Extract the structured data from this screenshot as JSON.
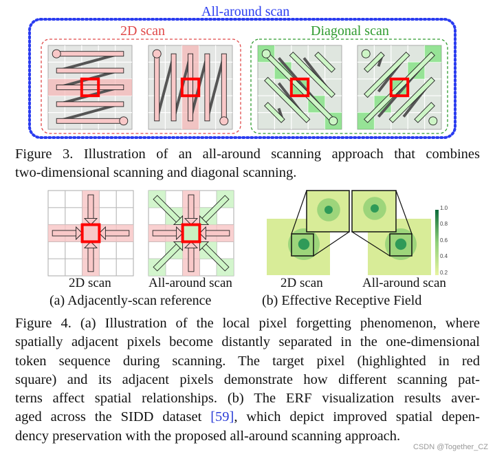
{
  "figure3": {
    "group_label": "All-around scan",
    "left_label": "2D scan",
    "right_label": "Diagonal scan",
    "caption_lines": [
      "Figure 3.  Illustration of an all-around scanning approach that combines",
      "two-dimensional scanning and diagonal scanning."
    ]
  },
  "figure4": {
    "panel_a": {
      "labels": [
        "2D scan",
        "All-around scan"
      ],
      "subcaption": "(a) Adjacently-scan reference"
    },
    "panel_b": {
      "labels": [
        "2D scan",
        "All-around scan"
      ],
      "subcaption": "(b) Effective Receptive Field",
      "colorbar_ticks": [
        "1.0",
        "0.8",
        "0.6",
        "0.4",
        "0.2"
      ]
    },
    "caption_lines": [
      "Figure 4. (a) Illustration of the local pixel forgetting phenomenon, where",
      "spatially adjacent pixels become distantly separated in the one-dimensional",
      "token sequence during scanning.  The target pixel (highlighted in red",
      "square) and its adjacent pixels demonstrate how different scanning pat-",
      "terns affect spatial relationships. (b) The ERF visualization results aver-",
      "dency preservation with the proposed all-around scanning approach."
    ],
    "caption_line6_before": "aged across the SIDD dataset ",
    "caption_ref": "[59]",
    "caption_line6_after": ", which depict improved spatial depen-"
  },
  "watermark": "CSDN @Together_CZ",
  "colors": {
    "all_around": "#2a3cf0",
    "scan_2d": "#e04848",
    "diagonal": "#2e9a2e",
    "pink_bar": "#f9c8c8",
    "green_bar": "#cdf5c6",
    "target": "#ff0000"
  }
}
